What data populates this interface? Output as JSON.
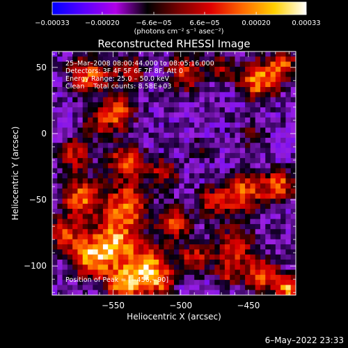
{
  "colorbar": {
    "ticks": [
      "−0.00033",
      "−0.00020",
      "−6.6e−05",
      "6.6e−05",
      "0.00020",
      "0.00033"
    ],
    "tick_values": [
      -0.00033,
      -0.0002,
      -6.6e-05,
      6.6e-05,
      0.0002,
      0.00033
    ],
    "range": [
      -0.00033,
      0.00033
    ],
    "units": "(photons cm⁻² s⁻¹ asec⁻²)",
    "colors": [
      "#0000ff",
      "#5a00ff",
      "#b000e8",
      "#000000",
      "#7a0000",
      "#e00000",
      "#ff6a00",
      "#ffd000",
      "#ffffff"
    ]
  },
  "plot": {
    "title": "Reconstructed RHESSI Image",
    "xlabel": "Heliocentric X (arcsec)",
    "ylabel": "Heliocentric Y (arcsec)",
    "x_ticks": [
      "−550",
      "−500",
      "−450"
    ],
    "x_tick_values": [
      -550,
      -500,
      -450
    ],
    "y_ticks": [
      "50",
      "0",
      "−50",
      "−100"
    ],
    "y_tick_values": [
      50,
      0,
      -50,
      -100
    ],
    "xlim": [
      -595,
      -415
    ],
    "ylim": [
      -122,
      62
    ]
  },
  "info": {
    "time_range": "25–Mar–2008 08:00:44.000 to 08:05:16.000",
    "detectors": "Detectors: 3F 4F 5F 6F 7F 8F, Att 0",
    "energy": "Energy Range: 25.0 – 50.0 keV",
    "clean_counts": "Clean    Total counts: 8.58E+03",
    "peak": "Position of Peak = [−456,−90]"
  },
  "footer": {
    "timestamp": "6–May–2022 23:33"
  }
}
